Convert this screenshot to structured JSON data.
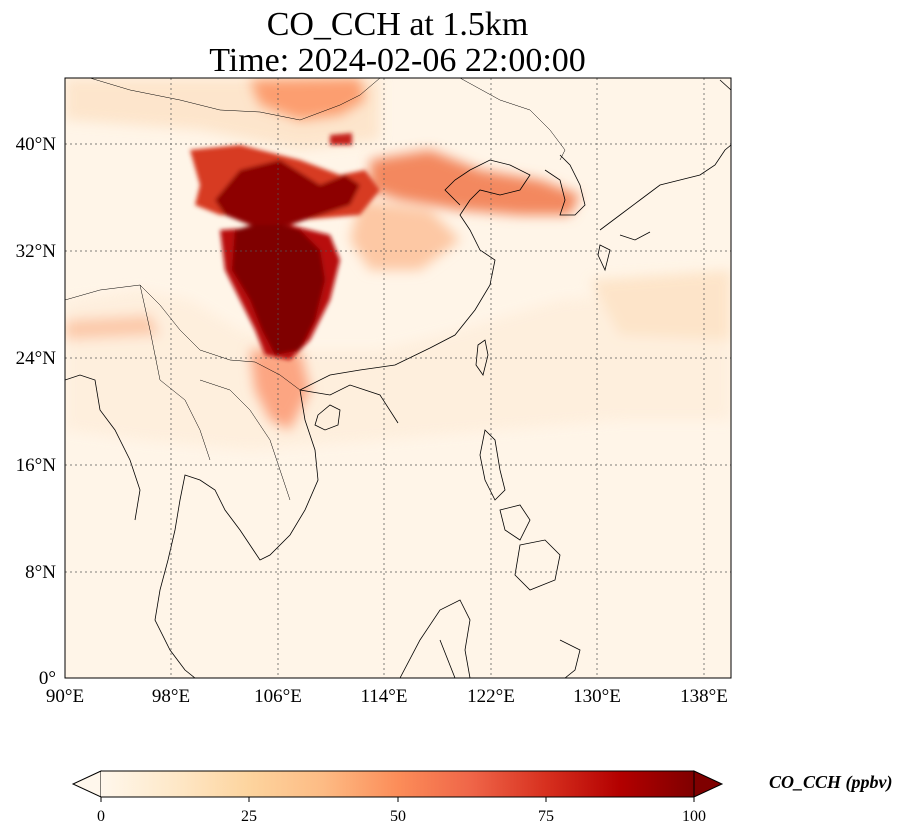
{
  "title": {
    "line1": "CO_CCH at 1.5km",
    "line2": "Time: 2024-02-06 22:00:00"
  },
  "map": {
    "variable": "CO_CCH",
    "level": "1.5km",
    "lon_range": [
      90,
      140
    ],
    "lat_range": [
      0,
      45
    ],
    "lon_ticks": [
      "90°E",
      "98°E",
      "106°E",
      "114°E",
      "122°E",
      "130°E",
      "138°E"
    ],
    "lat_ticks": [
      "0°",
      "8°N",
      "16°N",
      "24°N",
      "32°N",
      "40°N"
    ],
    "gridlines": "dotted",
    "colormap": "OrRd",
    "features": [
      "coastlines",
      "country-borders"
    ],
    "concentration_regions": [
      {
        "region": "Sichuan Basin / Chongqing",
        "level": "saturated (>=100)"
      },
      {
        "region": "Shaanxi / Gansu corridor",
        "level": "high (75-100)"
      },
      {
        "region": "North China Plain to Yellow Sea and Korea",
        "level": "moderate (40-60)"
      },
      {
        "region": "Northern Vietnam / Gulf of Tonkin",
        "level": "moderate (30-50)"
      },
      {
        "region": "Open ocean and maritime Southeast Asia",
        "level": "low (<10)"
      }
    ]
  },
  "colorbar": {
    "label": "CO_CCH (ppbv)",
    "ticks": [
      "0",
      "25",
      "50",
      "75",
      "100"
    ],
    "min": 0,
    "max": 100,
    "extend": "both",
    "colors": [
      "#fff7ec",
      "#fee8c8",
      "#fdd49e",
      "#fdbb84",
      "#fc8d59",
      "#ef6548",
      "#d7301f",
      "#b30000",
      "#7f0000"
    ]
  }
}
